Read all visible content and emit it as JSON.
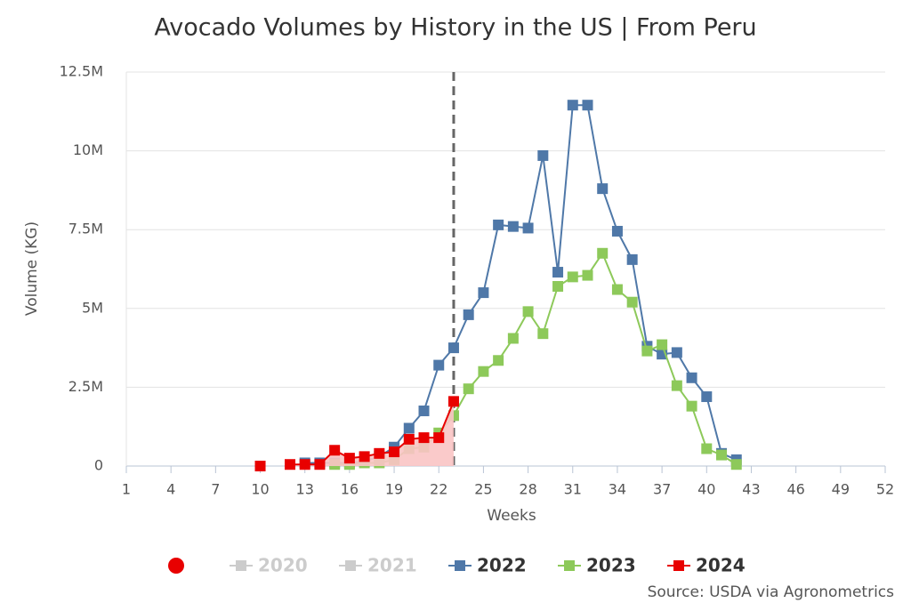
{
  "chart_data": {
    "type": "line",
    "title": "Avocado Volumes by History in the US | From Peru",
    "x_label": "Weeks",
    "y_label": "Volume (KG)",
    "source": "Source: USDA via Agronometrics",
    "x": [
      10,
      11,
      12,
      13,
      14,
      15,
      16,
      17,
      18,
      19,
      20,
      21,
      22,
      23,
      24,
      25,
      26,
      27,
      28,
      29,
      30,
      31,
      32,
      33,
      34,
      35,
      36,
      37,
      38,
      39,
      40,
      41,
      42
    ],
    "xlim": [
      1,
      52
    ],
    "xticks": [
      1,
      4,
      7,
      10,
      13,
      16,
      19,
      22,
      25,
      28,
      31,
      34,
      37,
      40,
      43,
      46,
      49,
      52
    ],
    "ylim": [
      0,
      12500000
    ],
    "yticks": [
      {
        "value": 0,
        "label": "0"
      },
      {
        "value": 2500000,
        "label": "2.5M"
      },
      {
        "value": 5000000,
        "label": "5M"
      },
      {
        "value": 7500000,
        "label": "7.5M"
      },
      {
        "value": 10000000,
        "label": "10M"
      },
      {
        "value": 12500000,
        "label": "12.5M"
      }
    ],
    "current_week": 23,
    "series": [
      {
        "name": "2020",
        "color": "#cccccc",
        "visible": false,
        "values": [
          null,
          null,
          null,
          null,
          null,
          null,
          null,
          null,
          null,
          null,
          null,
          null,
          null,
          null,
          null,
          null,
          null,
          null,
          null,
          null,
          null,
          null,
          null,
          null,
          null,
          null,
          null,
          null,
          null,
          null,
          null,
          null,
          null
        ]
      },
      {
        "name": "2021",
        "color": "#cccccc",
        "visible": false,
        "values": [
          null,
          null,
          null,
          null,
          null,
          null,
          null,
          null,
          null,
          null,
          null,
          null,
          null,
          null,
          null,
          null,
          null,
          null,
          null,
          null,
          null,
          null,
          null,
          null,
          null,
          null,
          null,
          null,
          null,
          null,
          null,
          null,
          null
        ]
      },
      {
        "name": "2022",
        "color": "#4f78a8",
        "visible": true,
        "values": [
          null,
          null,
          null,
          100000,
          100000,
          100000,
          100000,
          150000,
          300000,
          600000,
          1200000,
          1750000,
          3200000,
          3750000,
          4800000,
          5500000,
          7650000,
          7600000,
          7550000,
          9850000,
          6150000,
          11450000,
          11450000,
          8800000,
          7450000,
          6550000,
          3800000,
          3550000,
          3600000,
          2800000,
          2200000,
          400000,
          200000
        ]
      },
      {
        "name": "2023",
        "color": "#8dc95a",
        "visible": true,
        "values": [
          null,
          null,
          null,
          null,
          null,
          50000,
          50000,
          100000,
          100000,
          200000,
          550000,
          600000,
          1050000,
          1600000,
          2450000,
          3000000,
          3350000,
          4050000,
          4900000,
          4200000,
          5700000,
          6000000,
          6050000,
          6750000,
          5600000,
          5200000,
          3650000,
          3850000,
          2550000,
          1900000,
          550000,
          350000,
          50000
        ]
      },
      {
        "name": "2024",
        "color": "#e80000",
        "visible": true,
        "fill_area": true,
        "values": [
          0,
          null,
          50000,
          50000,
          50000,
          500000,
          250000,
          300000,
          400000,
          450000,
          850000,
          900000,
          900000,
          2050000,
          null,
          null,
          null,
          null,
          null,
          null,
          null,
          null,
          null,
          null,
          null,
          null,
          null,
          null,
          null,
          null,
          null,
          null,
          null
        ]
      }
    ]
  }
}
